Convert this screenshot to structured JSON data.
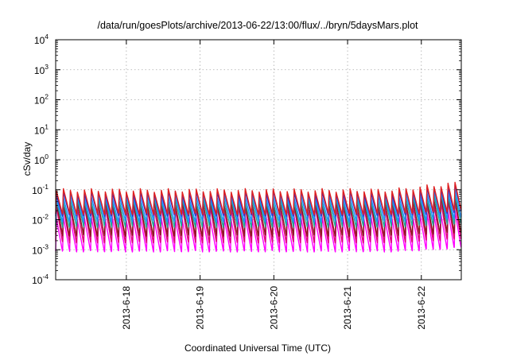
{
  "chart_data": {
    "type": "line",
    "title": "/data/run/goesPlots/archive/2013-06-22/13:00/flux/../bryn/5daysMars.plot",
    "xlabel": "Coordinated Universal Time (UTC)",
    "ylabel": "cSv/day",
    "x_range": [
      "2013-06-17 01:00",
      "2013-06-22 13:00"
    ],
    "x_ticks": [
      "2013-6-18",
      "2013-6-19",
      "2013-6-20",
      "2013-6-21",
      "2013-6-22"
    ],
    "y_scale": "log",
    "ylim": [
      0.0001,
      10000
    ],
    "y_ticks": [
      {
        "base": "10",
        "exp": "-4"
      },
      {
        "base": "10",
        "exp": "-3"
      },
      {
        "base": "10",
        "exp": "-2"
      },
      {
        "base": "10",
        "exp": "-1"
      },
      {
        "base": "10",
        "exp": "0"
      },
      {
        "base": "10",
        "exp": "1"
      },
      {
        "base": "10",
        "exp": "2"
      },
      {
        "base": "10",
        "exp": "3"
      },
      {
        "base": "10",
        "exp": "4"
      }
    ],
    "grid": true,
    "sawtooth_cycles": 58,
    "series": [
      {
        "color": "#ff00ff",
        "peak": 0.011,
        "trough": 0.0009
      },
      {
        "color": "#e0007a",
        "peak": 0.025,
        "trough": 0.0018
      },
      {
        "color": "#8a1a1a",
        "peak": 0.035,
        "trough": 0.003
      },
      {
        "color": "#1fa89a",
        "peak": 0.045,
        "trough": 0.006
      },
      {
        "color": "#1e90ff",
        "peak": 0.06,
        "trough": 0.009
      },
      {
        "color": "#3030d0",
        "peak": 0.08,
        "trough": 0.014
      },
      {
        "color": "#e02020",
        "peak": 0.095,
        "trough": 0.016
      }
    ]
  }
}
